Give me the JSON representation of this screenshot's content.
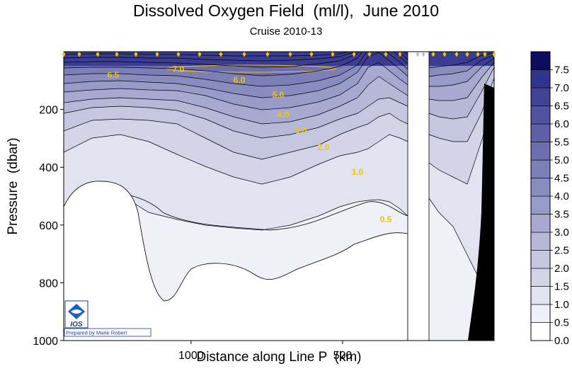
{
  "chart_data": {
    "type": "heatmap",
    "subtype": "filled contour section",
    "title": "Dissolved Oxygen Field  (ml/l),  June 2010",
    "subtitle": "Cruise 2010-13",
    "xlabel": "Distance along Line P  (km)",
    "ylabel": "Pressure  (dbar)",
    "x_axis": {
      "ticks": [
        1000,
        500
      ],
      "reversed": true,
      "range_km": [
        1420,
        0
      ]
    },
    "y_axis": {
      "ticks": [
        200,
        400,
        600,
        800,
        1000
      ],
      "range_dbar": [
        0,
        1000
      ],
      "inverted": true
    },
    "colorbar": {
      "levels": [
        "0.0",
        "0.5",
        "1.0",
        "1.5",
        "2.0",
        "2.5",
        "3.0",
        "3.5",
        "4.0",
        "4.5",
        "5.0",
        "5.5",
        "6.0",
        "6.5",
        "7.0",
        "7.5"
      ],
      "colors": [
        "#ffffff",
        "#f0f0f8",
        "#e2e3f0",
        "#d3d4e8",
        "#c5c6e0",
        "#b6b8d8",
        "#a7a9d0",
        "#989bc7",
        "#8a8cbf",
        "#7b7eb7",
        "#6c6faf",
        "#5d60a6",
        "#4f529e",
        "#404395",
        "#31348c",
        "#0c0c63"
      ]
    },
    "contour_labels": [
      "6.5",
      "7.0",
      "6.0",
      "5.0",
      "4.0",
      "3.0",
      "2.0",
      "1.0",
      "0.5"
    ],
    "stations_marker_color": "#f5c400",
    "label_color": "#f5c400",
    "logo": {
      "text": "IOS",
      "credit": "Prepared by Marie Robert"
    }
  }
}
